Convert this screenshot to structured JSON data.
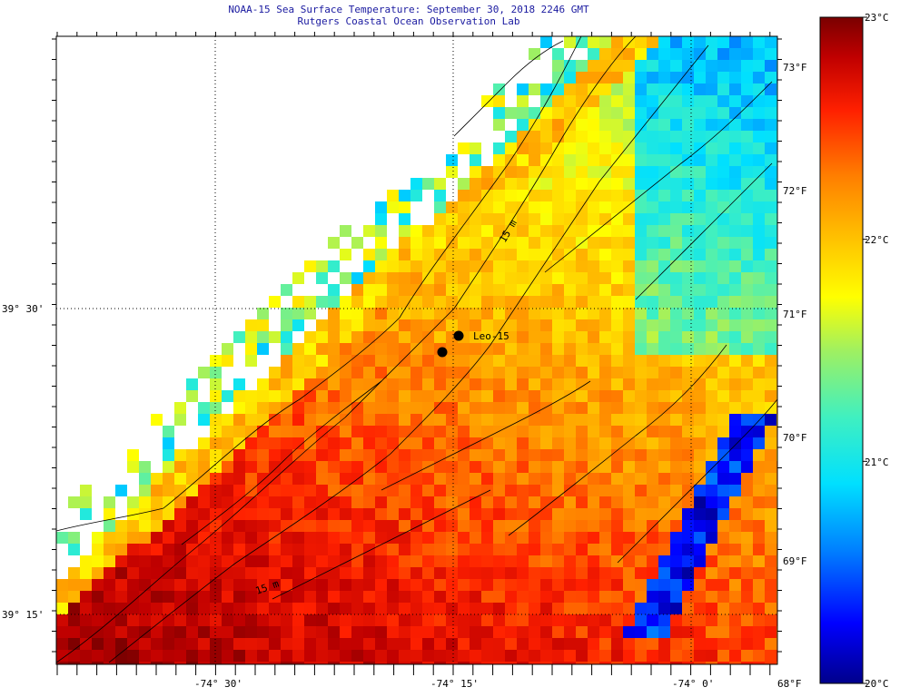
{
  "title": "NOAA-15 Sea Surface Temperature:  September 30, 2018 2246 GMT",
  "subtitle": "Rutgers Coastal Ocean Observation Lab",
  "station_label": "Leo-15",
  "contour_label": "15 m",
  "lon_labels": [
    "-74° 30'",
    "-74° 15'",
    "-74° 0'"
  ],
  "lat_labels": [
    "39° 30'",
    "39° 15'"
  ],
  "fahrenheit_labels": [
    "73°F",
    "72°F",
    "71°F",
    "70°F",
    "69°F",
    "68°F"
  ],
  "celsius_labels": [
    "23°C",
    "22°C",
    "21°C",
    "20°C"
  ],
  "colorscale": {
    "min_c": 20,
    "max_c": 23,
    "stops": [
      "#00008b",
      "#0000ff",
      "#0080ff",
      "#00e0ff",
      "#40f0c0",
      "#a0f060",
      "#ffff00",
      "#ffc000",
      "#ff8000",
      "#ff2000",
      "#c00000",
      "#7a0000"
    ]
  },
  "colors": {
    "land": "#ffffff",
    "grid": "#000000",
    "coast": "#000000"
  }
}
